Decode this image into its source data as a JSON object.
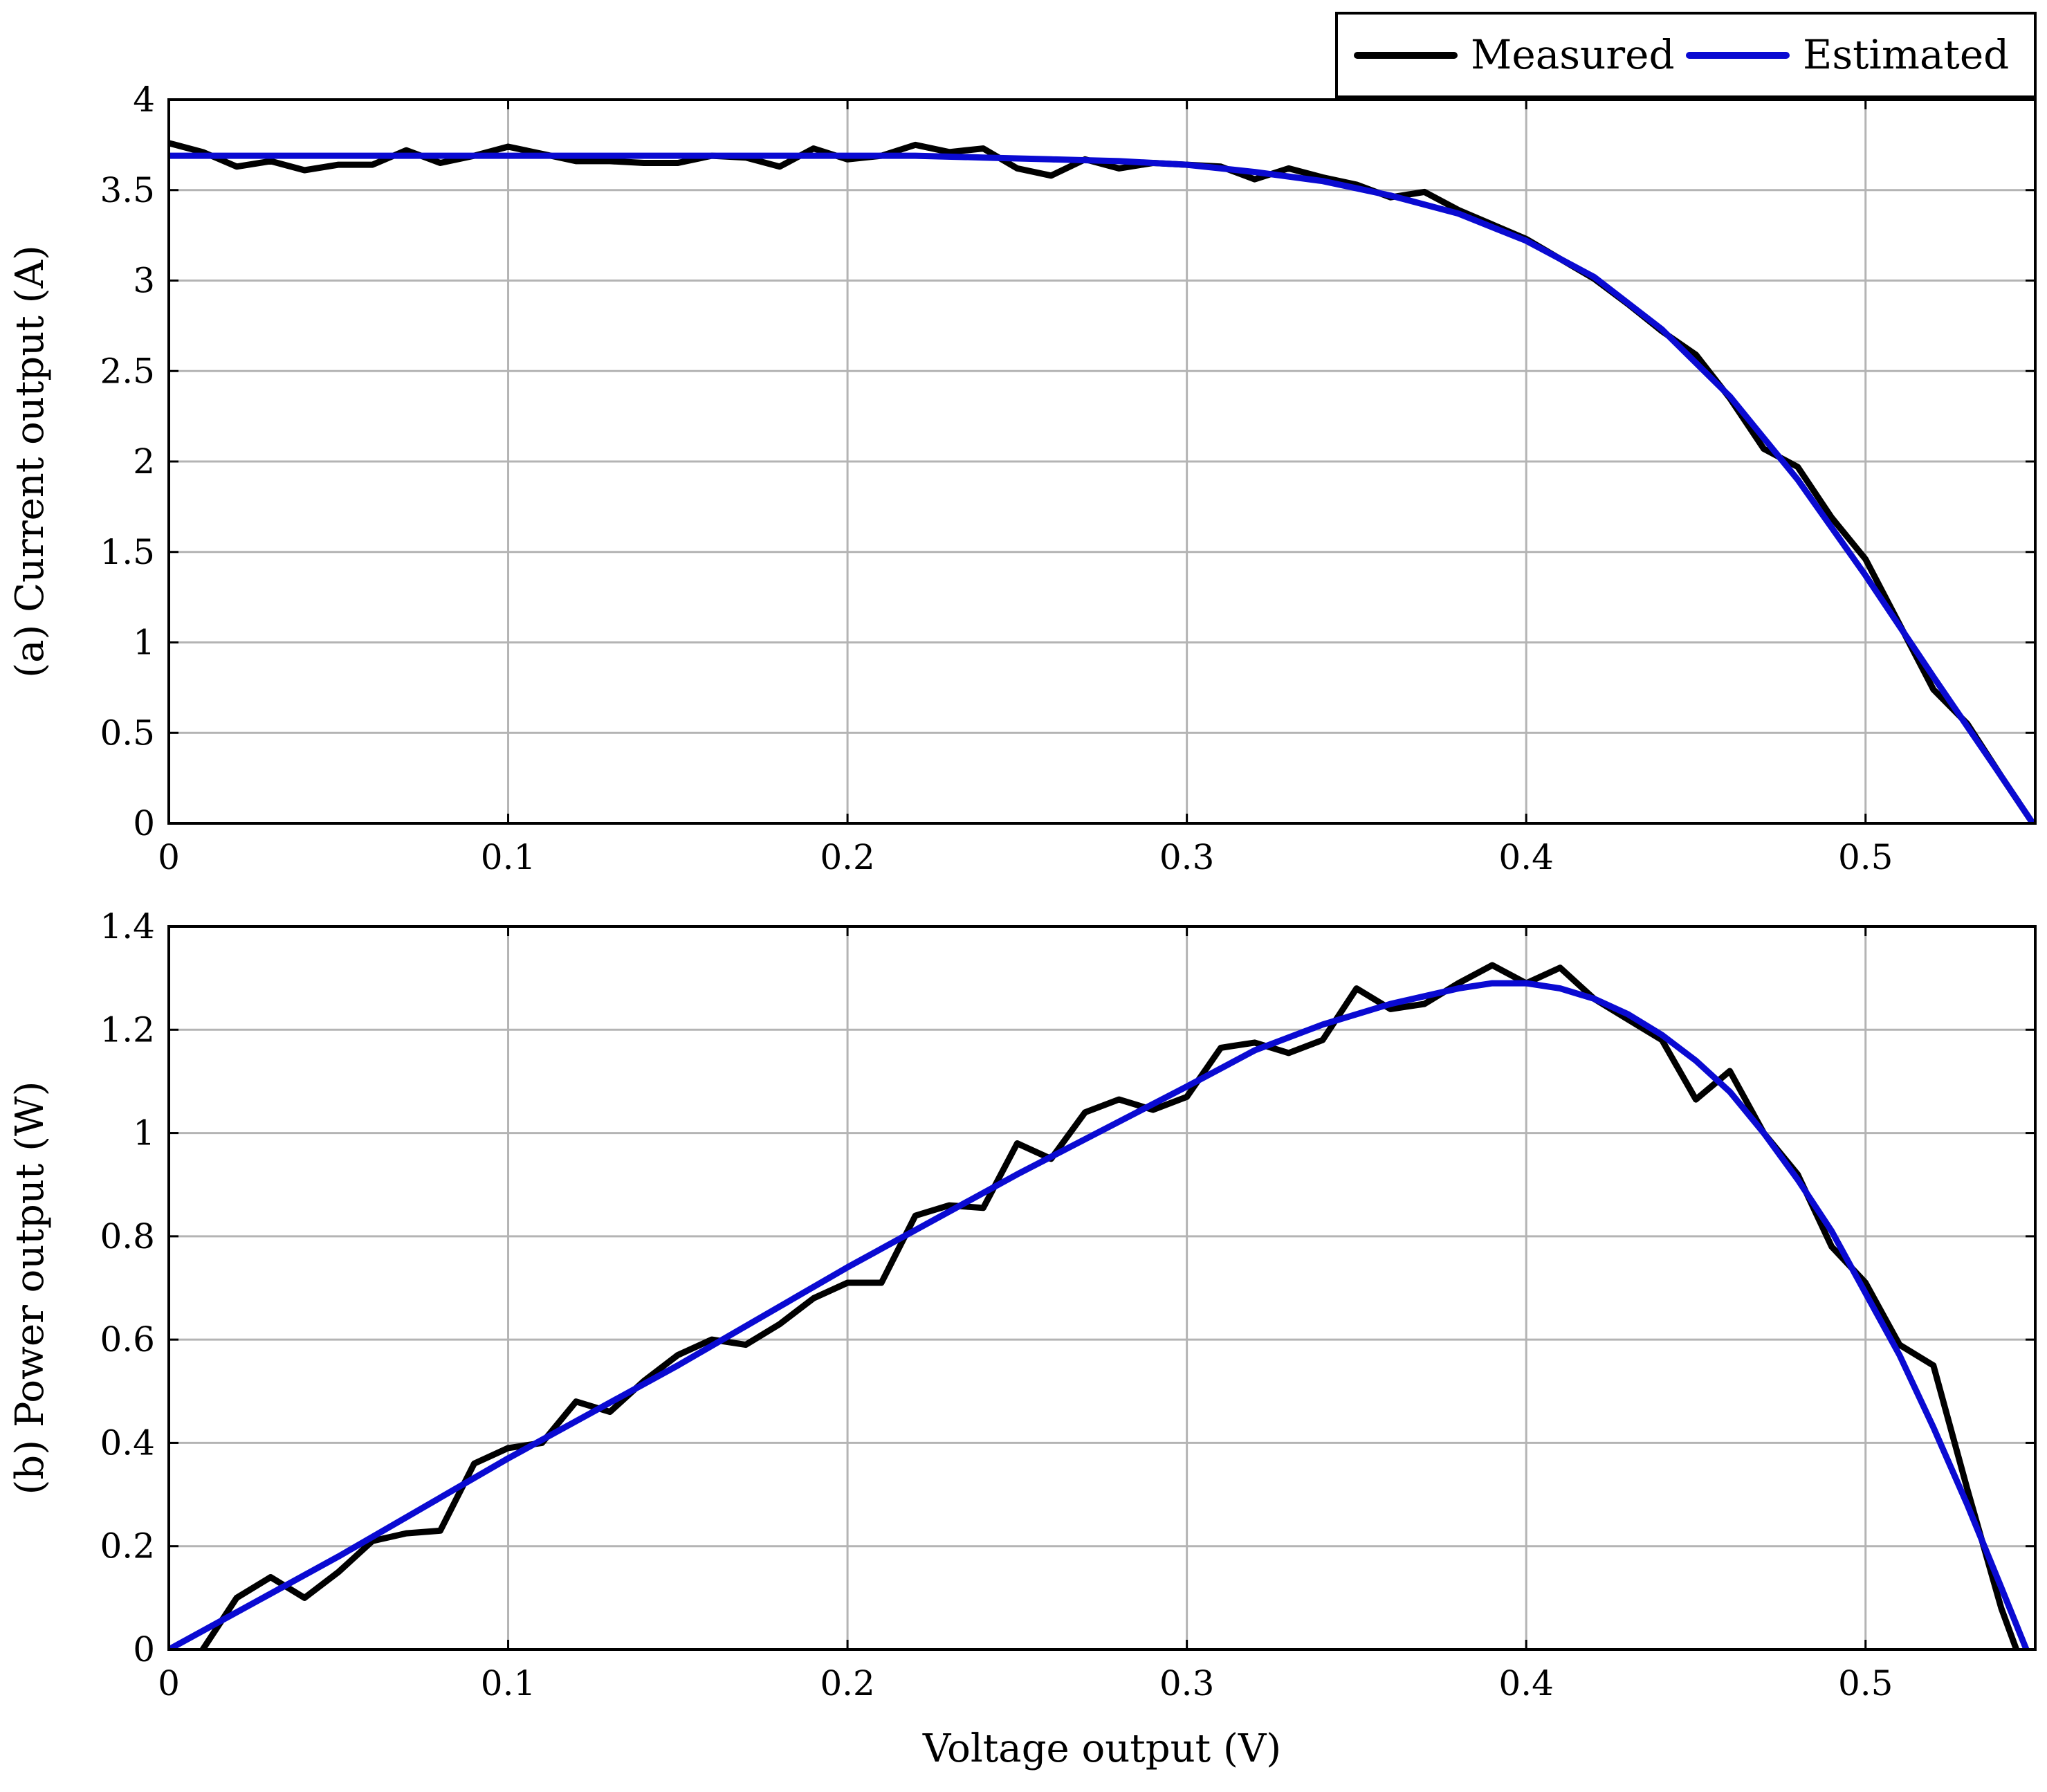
{
  "colors": {
    "measured": "#000000",
    "estimated": "#0a0ad2",
    "grid": "#b4b4b4"
  },
  "legend": {
    "placement": "top-right",
    "items": [
      {
        "label": "Measured",
        "color": "#000000"
      },
      {
        "label": "Estimated",
        "color": "#0a0ad2"
      }
    ]
  },
  "chart_data": [
    {
      "type": "line",
      "ylabel": "(a) Current output (A)",
      "xlabel": "",
      "xlim": [
        0,
        0.55
      ],
      "ylim": [
        0,
        4
      ],
      "xticks": [
        0,
        0.1,
        0.2,
        0.3,
        0.4,
        0.5
      ],
      "xtick_labels": [
        "0",
        "0.1",
        "0.2",
        "0.3",
        "0.4",
        "0.5"
      ],
      "yticks": [
        0,
        0.5,
        1,
        1.5,
        2,
        2.5,
        3,
        3.5,
        4
      ],
      "ytick_labels": [
        "0",
        "0.5",
        "1",
        "1.5",
        "2",
        "2.5",
        "3",
        "3.5",
        "4"
      ],
      "grid": true,
      "series": [
        {
          "name": "Measured",
          "x": [
            0,
            0.01,
            0.02,
            0.03,
            0.04,
            0.05,
            0.06,
            0.07,
            0.08,
            0.09,
            0.1,
            0.11,
            0.12,
            0.13,
            0.14,
            0.15,
            0.16,
            0.17,
            0.18,
            0.19,
            0.2,
            0.21,
            0.22,
            0.23,
            0.24,
            0.25,
            0.26,
            0.27,
            0.28,
            0.29,
            0.3,
            0.31,
            0.32,
            0.33,
            0.34,
            0.35,
            0.36,
            0.37,
            0.38,
            0.39,
            0.4,
            0.41,
            0.42,
            0.43,
            0.44,
            0.45,
            0.46,
            0.47,
            0.48,
            0.49,
            0.5,
            0.51,
            0.52,
            0.53,
            0.54,
            0.55
          ],
          "y": [
            3.76,
            3.71,
            3.63,
            3.66,
            3.61,
            3.64,
            3.64,
            3.72,
            3.65,
            3.69,
            3.74,
            3.7,
            3.66,
            3.66,
            3.65,
            3.65,
            3.69,
            3.68,
            3.63,
            3.73,
            3.67,
            3.69,
            3.75,
            3.71,
            3.73,
            3.62,
            3.58,
            3.67,
            3.62,
            3.65,
            3.64,
            3.63,
            3.56,
            3.62,
            3.57,
            3.53,
            3.46,
            3.49,
            3.39,
            3.31,
            3.23,
            3.12,
            3.01,
            2.87,
            2.72,
            2.59,
            2.35,
            2.07,
            1.97,
            1.69,
            1.46,
            1.1,
            0.74,
            0.55,
            0.26,
            -0.02
          ]
        },
        {
          "name": "Estimated",
          "x": [
            0,
            0.05,
            0.1,
            0.15,
            0.2,
            0.22,
            0.24,
            0.26,
            0.28,
            0.3,
            0.32,
            0.34,
            0.36,
            0.38,
            0.4,
            0.42,
            0.44,
            0.46,
            0.48,
            0.5,
            0.52,
            0.54,
            0.55
          ],
          "y": [
            3.69,
            3.69,
            3.69,
            3.69,
            3.69,
            3.69,
            3.68,
            3.67,
            3.66,
            3.64,
            3.6,
            3.55,
            3.47,
            3.37,
            3.22,
            3.02,
            2.73,
            2.36,
            1.9,
            1.37,
            0.81,
            0.26,
            -0.02
          ]
        }
      ]
    },
    {
      "type": "line",
      "ylabel": "(b) Power output (W)",
      "xlabel": "Voltage output (V)",
      "xlim": [
        0,
        0.55
      ],
      "ylim": [
        0,
        1.4
      ],
      "xticks": [
        0,
        0.1,
        0.2,
        0.3,
        0.4,
        0.5
      ],
      "xtick_labels": [
        "0",
        "0.1",
        "0.2",
        "0.3",
        "0.4",
        "0.5"
      ],
      "yticks": [
        0,
        0.2,
        0.4,
        0.6,
        0.8,
        1,
        1.2,
        1.4
      ],
      "ytick_labels": [
        "0",
        "0.2",
        "0.4",
        "0.6",
        "0.8",
        "1",
        "1.2",
        "1.4"
      ],
      "grid": true,
      "series": [
        {
          "name": "Measured",
          "x": [
            0.01,
            0.02,
            0.03,
            0.04,
            0.05,
            0.06,
            0.07,
            0.08,
            0.09,
            0.1,
            0.11,
            0.12,
            0.13,
            0.14,
            0.15,
            0.16,
            0.17,
            0.18,
            0.19,
            0.2,
            0.21,
            0.22,
            0.23,
            0.24,
            0.25,
            0.26,
            0.27,
            0.28,
            0.29,
            0.3,
            0.31,
            0.32,
            0.33,
            0.34,
            0.35,
            0.36,
            0.37,
            0.38,
            0.39,
            0.4,
            0.41,
            0.42,
            0.43,
            0.44,
            0.45,
            0.46,
            0.47,
            0.48,
            0.49,
            0.5,
            0.51,
            0.52,
            0.53,
            0.54,
            0.545
          ],
          "y": [
            0.0,
            0.1,
            0.14,
            0.1,
            0.15,
            0.21,
            0.225,
            0.23,
            0.36,
            0.39,
            0.4,
            0.48,
            0.46,
            0.52,
            0.57,
            0.6,
            0.59,
            0.63,
            0.68,
            0.71,
            0.71,
            0.84,
            0.86,
            0.855,
            0.98,
            0.95,
            1.04,
            1.065,
            1.045,
            1.07,
            1.165,
            1.175,
            1.155,
            1.18,
            1.28,
            1.24,
            1.25,
            1.29,
            1.325,
            1.29,
            1.32,
            1.26,
            1.22,
            1.18,
            1.065,
            1.12,
            1.0,
            0.92,
            0.78,
            0.71,
            0.59,
            0.55,
            0.31,
            0.08,
            -0.01
          ]
        },
        {
          "name": "Estimated",
          "x": [
            0,
            0.05,
            0.1,
            0.15,
            0.2,
            0.25,
            0.3,
            0.32,
            0.34,
            0.36,
            0.38,
            0.39,
            0.4,
            0.41,
            0.42,
            0.43,
            0.44,
            0.45,
            0.46,
            0.47,
            0.48,
            0.49,
            0.5,
            0.51,
            0.52,
            0.53,
            0.54,
            0.548
          ],
          "y": [
            0,
            0.18,
            0.37,
            0.55,
            0.74,
            0.92,
            1.09,
            1.16,
            1.21,
            1.25,
            1.28,
            1.29,
            1.29,
            1.28,
            1.26,
            1.23,
            1.19,
            1.14,
            1.08,
            1.0,
            0.91,
            0.81,
            0.69,
            0.57,
            0.43,
            0.28,
            0.12,
            -0.01
          ]
        }
      ]
    }
  ]
}
